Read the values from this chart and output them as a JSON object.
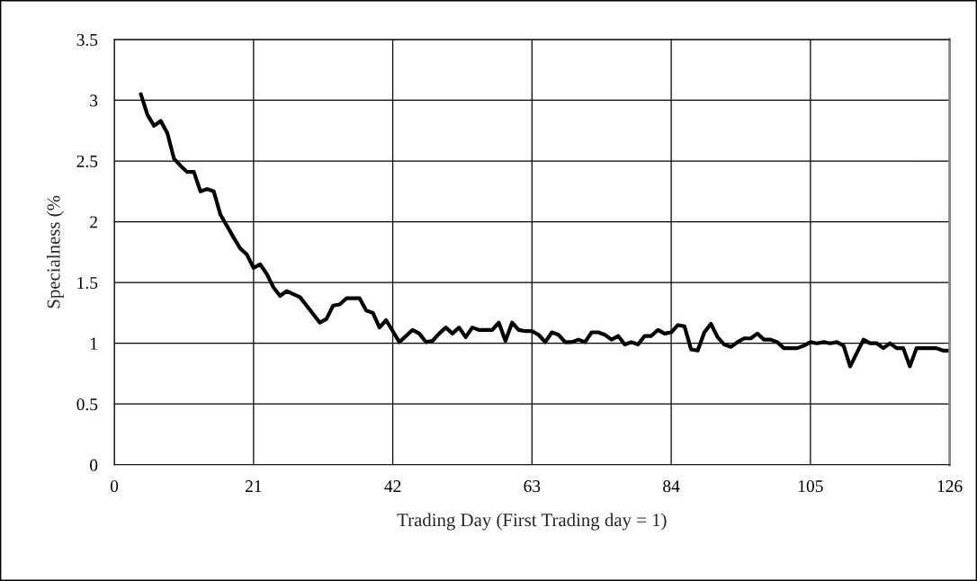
{
  "chart_data": {
    "type": "line",
    "xlabel": "Trading Day (First Trading day = 1)",
    "ylabel": "Specialness (%",
    "x": [
      4,
      5,
      6,
      7,
      8,
      9,
      10,
      11,
      12,
      13,
      14,
      15,
      16,
      18,
      19,
      20,
      21,
      22,
      23,
      24,
      25,
      26,
      28,
      29,
      31,
      32,
      33,
      34,
      35,
      37,
      38,
      39,
      40,
      41,
      43,
      45,
      46,
      47,
      48,
      49,
      50,
      51,
      52,
      53,
      54,
      55,
      57,
      58,
      59,
      60,
      61,
      62,
      63,
      64,
      65,
      66,
      67,
      68,
      69,
      70,
      71,
      72,
      73,
      74,
      75,
      76,
      77,
      78,
      79,
      80,
      81,
      82,
      83,
      84,
      85,
      86,
      87,
      88,
      89,
      90,
      91,
      92,
      93,
      94,
      95,
      96,
      97,
      98,
      99,
      100,
      101,
      103,
      104,
      105,
      106,
      107,
      108,
      109,
      110,
      111,
      113,
      114,
      115,
      116,
      117,
      118,
      119,
      120,
      121,
      124,
      125,
      126
    ],
    "series": [
      {
        "color": "#000000",
        "values": [
          3.05,
          2.88,
          2.79,
          2.83,
          2.73,
          2.52,
          2.46,
          2.41,
          2.41,
          2.25,
          2.27,
          2.25,
          2.06,
          1.87,
          1.78,
          1.73,
          1.62,
          1.65,
          1.57,
          1.46,
          1.39,
          1.43,
          1.38,
          1.31,
          1.17,
          1.2,
          1.31,
          1.32,
          1.37,
          1.37,
          1.27,
          1.25,
          1.13,
          1.19,
          1.01,
          1.11,
          1.08,
          1.01,
          1.02,
          1.08,
          1.13,
          1.08,
          1.13,
          1.05,
          1.13,
          1.11,
          1.11,
          1.17,
          1.02,
          1.17,
          1.11,
          1.1,
          1.1,
          1.07,
          1.01,
          1.09,
          1.07,
          1.01,
          1.01,
          1.03,
          1.01,
          1.09,
          1.09,
          1.07,
          1.03,
          1.06,
          0.99,
          1.01,
          0.99,
          1.06,
          1.06,
          1.11,
          1.08,
          1.09,
          1.15,
          1.14,
          0.95,
          0.94,
          1.09,
          1.16,
          1.05,
          0.99,
          0.97,
          1.01,
          1.04,
          1.04,
          1.08,
          1.03,
          1.03,
          1.01,
          0.96,
          0.96,
          0.98,
          1.01,
          1.0,
          1.01,
          1.0,
          1.01,
          0.98,
          0.81,
          1.03,
          1.0,
          1.0,
          0.96,
          1.0,
          0.96,
          0.96,
          0.81,
          0.96,
          0.96,
          0.94,
          0.94
        ]
      }
    ],
    "xlim": [
      0,
      126
    ],
    "xticks": [
      0,
      21,
      42,
      63,
      84,
      105,
      126
    ],
    "ylim": [
      0,
      3.5
    ],
    "yticks": [
      0,
      0.5,
      1,
      1.5,
      2,
      2.5,
      3,
      3.5
    ],
    "grid": true,
    "legend": false,
    "marker": "none",
    "line_style": "solid"
  }
}
